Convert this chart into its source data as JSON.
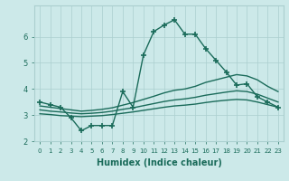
{
  "xlabel": "Humidex (Indice chaleur)",
  "background_color": "#cce9e9",
  "grid_color": "#aacfcf",
  "line_color": "#1a6b5a",
  "x_ticks": [
    0,
    1,
    2,
    3,
    4,
    5,
    6,
    7,
    8,
    9,
    10,
    11,
    12,
    13,
    14,
    15,
    16,
    17,
    18,
    19,
    20,
    21,
    22,
    23
  ],
  "ylim": [
    2.0,
    7.2
  ],
  "xlim": [
    -0.5,
    23.5
  ],
  "series": [
    {
      "x": [
        0,
        1,
        2,
        3,
        4,
        5,
        6,
        7,
        8,
        9,
        10,
        11,
        12,
        13,
        14,
        15,
        16,
        17,
        18,
        19,
        20,
        21,
        22,
        23
      ],
      "y": [
        3.5,
        3.4,
        3.3,
        2.9,
        2.4,
        2.6,
        2.6,
        2.6,
        3.9,
        3.3,
        5.3,
        6.2,
        6.45,
        6.65,
        6.1,
        6.1,
        5.55,
        5.1,
        4.65,
        4.15,
        4.2,
        3.7,
        3.5,
        3.3
      ],
      "marker": "+",
      "markersize": 4,
      "linewidth": 1.0,
      "with_marker": true
    },
    {
      "x": [
        0,
        1,
        2,
        3,
        4,
        5,
        6,
        7,
        8,
        9,
        10,
        11,
        12,
        13,
        14,
        15,
        16,
        17,
        18,
        19,
        20,
        21,
        22,
        23
      ],
      "y": [
        3.35,
        3.3,
        3.25,
        3.2,
        3.15,
        3.18,
        3.22,
        3.28,
        3.38,
        3.48,
        3.6,
        3.72,
        3.85,
        3.95,
        4.0,
        4.1,
        4.25,
        4.35,
        4.45,
        4.55,
        4.5,
        4.35,
        4.1,
        3.9
      ],
      "marker": null,
      "markersize": 0,
      "linewidth": 1.0,
      "with_marker": false
    },
    {
      "x": [
        0,
        1,
        2,
        3,
        4,
        5,
        6,
        7,
        8,
        9,
        10,
        11,
        12,
        13,
        14,
        15,
        16,
        17,
        18,
        19,
        20,
        21,
        22,
        23
      ],
      "y": [
        3.2,
        3.15,
        3.12,
        3.08,
        3.05,
        3.07,
        3.1,
        3.15,
        3.22,
        3.28,
        3.36,
        3.44,
        3.52,
        3.58,
        3.62,
        3.68,
        3.76,
        3.82,
        3.88,
        3.93,
        3.9,
        3.8,
        3.65,
        3.5
      ],
      "marker": null,
      "markersize": 0,
      "linewidth": 1.0,
      "with_marker": false
    },
    {
      "x": [
        0,
        1,
        2,
        3,
        4,
        5,
        6,
        7,
        8,
        9,
        10,
        11,
        12,
        13,
        14,
        15,
        16,
        17,
        18,
        19,
        20,
        21,
        22,
        23
      ],
      "y": [
        3.05,
        3.02,
        2.98,
        2.96,
        2.94,
        2.96,
        2.98,
        3.02,
        3.07,
        3.12,
        3.18,
        3.24,
        3.3,
        3.35,
        3.38,
        3.42,
        3.48,
        3.53,
        3.57,
        3.6,
        3.58,
        3.5,
        3.4,
        3.3
      ],
      "marker": null,
      "markersize": 0,
      "linewidth": 1.0,
      "with_marker": false
    }
  ],
  "yticks": [
    2,
    3,
    4,
    5,
    6
  ],
  "xlabel_fontsize": 7,
  "xtick_fontsize": 5,
  "ytick_fontsize": 6
}
